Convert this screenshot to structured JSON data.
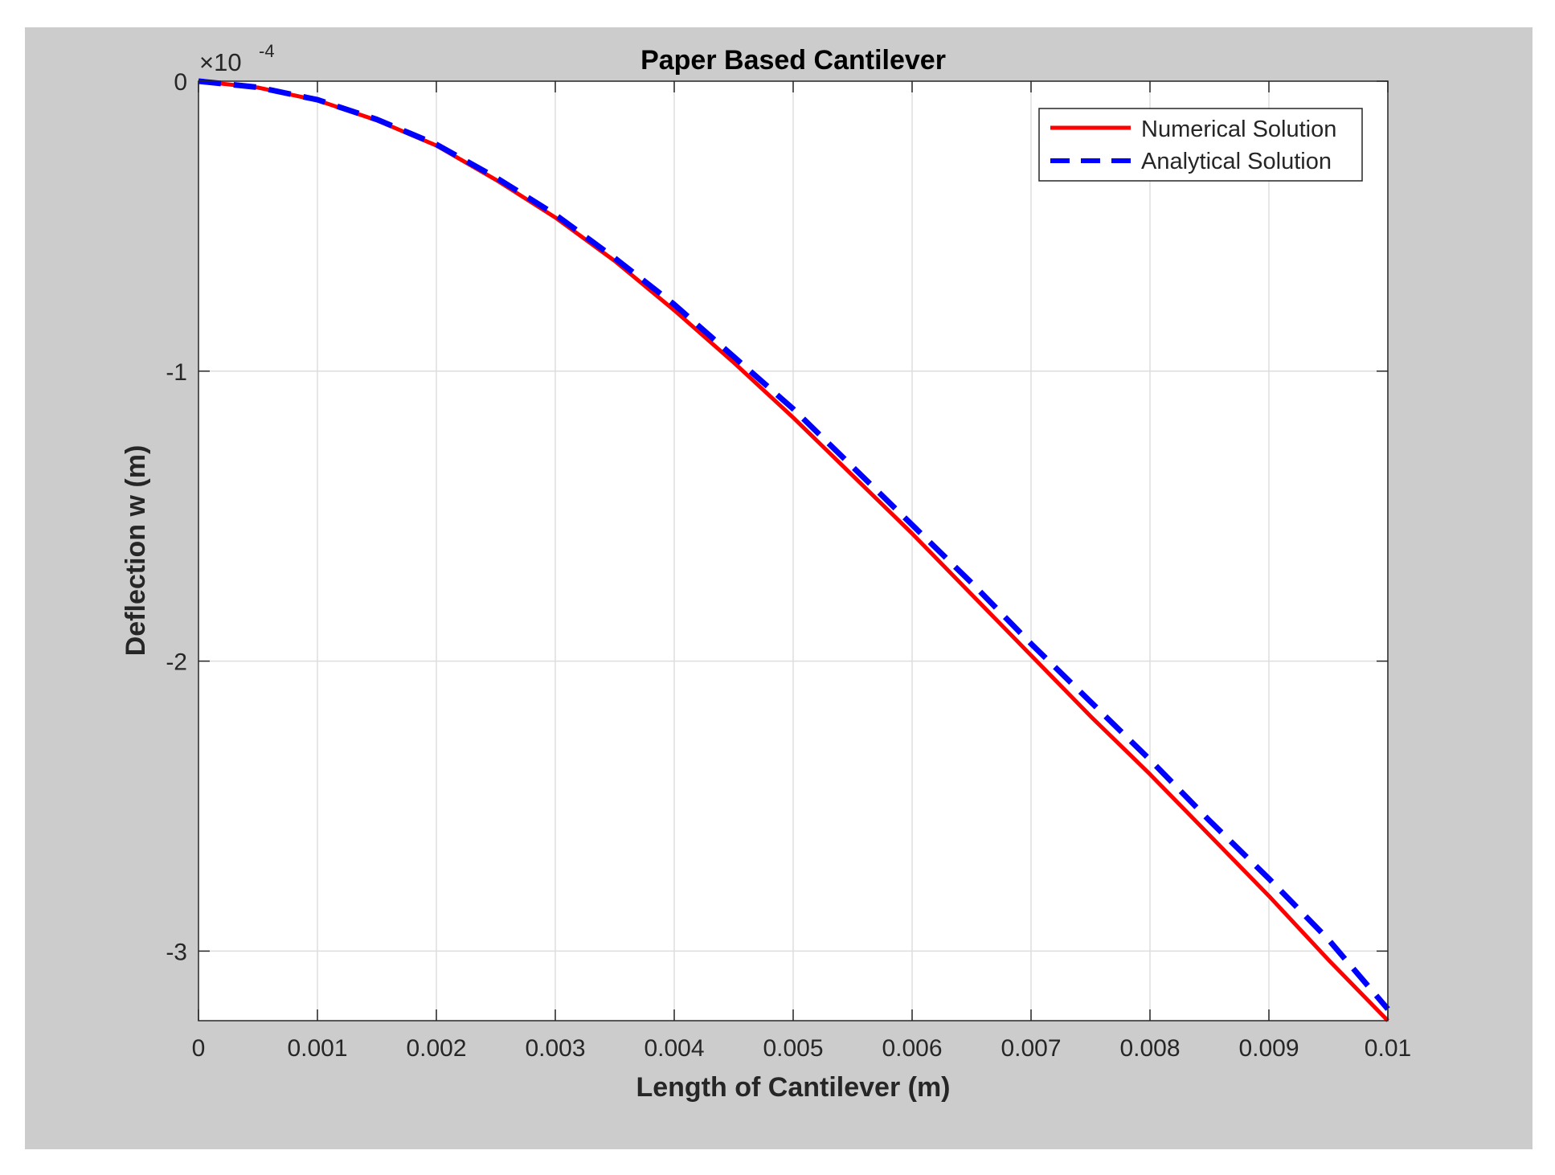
{
  "chart_data": {
    "type": "line",
    "title": "Paper Based Cantilever",
    "xlabel": "Length of Cantilever (m)",
    "ylabel": "Deflection w (m)",
    "xlim": [
      0,
      0.01
    ],
    "ylim": [
      -3.24,
      0
    ],
    "y_exponent_base": "×10",
    "y_exponent_power": "-4",
    "xticks": [
      0,
      0.001,
      0.002,
      0.003,
      0.004,
      0.005,
      0.006,
      0.007,
      0.008,
      0.009,
      0.01
    ],
    "xtick_labels": [
      "0",
      "0.001",
      "0.002",
      "0.003",
      "0.004",
      "0.005",
      "0.006",
      "0.007",
      "0.008",
      "0.009",
      "0.01"
    ],
    "yticks": [
      0,
      -1,
      -2,
      -3
    ],
    "ytick_labels": [
      "0",
      "-1",
      "-2",
      "-3"
    ],
    "grid": true,
    "legend_position": "top-right",
    "series": [
      {
        "name": "Numerical Solution",
        "color": "#ff0000",
        "style": "solid",
        "x": [
          0,
          0.0005,
          0.001,
          0.0015,
          0.002,
          0.0025,
          0.003,
          0.0035,
          0.004,
          0.0045,
          0.005,
          0.0055,
          0.006,
          0.0065,
          0.007,
          0.0075,
          0.008,
          0.0085,
          0.009,
          0.0095,
          0.01
        ],
        "y": [
          0,
          -0.022,
          -0.066,
          -0.135,
          -0.222,
          -0.34,
          -0.47,
          -0.62,
          -0.79,
          -0.97,
          -1.16,
          -1.36,
          -1.56,
          -1.77,
          -1.98,
          -2.19,
          -2.39,
          -2.6,
          -2.81,
          -3.03,
          -3.24
        ]
      },
      {
        "name": "Analytical Solution",
        "color": "#0000ff",
        "style": "dashed",
        "x": [
          0,
          0.0005,
          0.001,
          0.0015,
          0.002,
          0.0025,
          0.003,
          0.0035,
          0.004,
          0.0045,
          0.005,
          0.0055,
          0.006,
          0.0065,
          0.007,
          0.0075,
          0.008,
          0.0085,
          0.009,
          0.0095,
          0.01
        ],
        "y": [
          0,
          -0.021,
          -0.064,
          -0.132,
          -0.218,
          -0.332,
          -0.46,
          -0.61,
          -0.77,
          -0.95,
          -1.13,
          -1.33,
          -1.53,
          -1.73,
          -1.94,
          -2.14,
          -2.34,
          -2.55,
          -2.75,
          -2.96,
          -3.2
        ]
      }
    ]
  }
}
